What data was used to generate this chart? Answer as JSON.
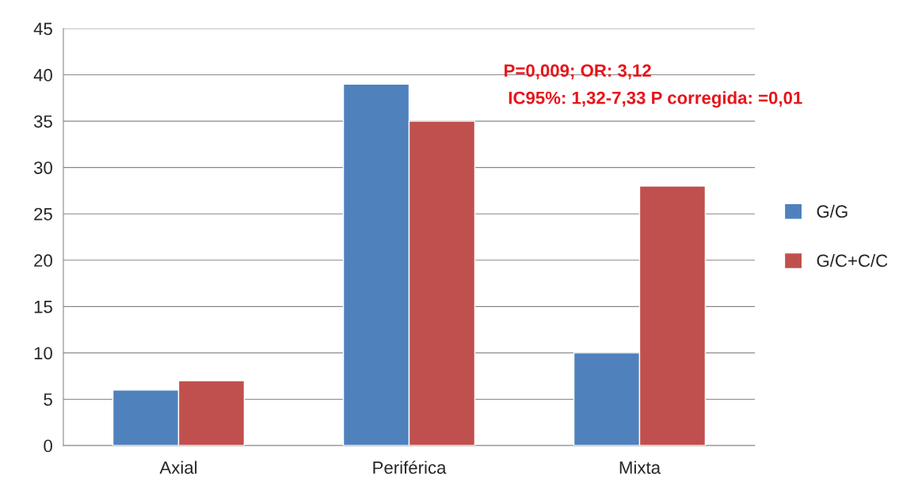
{
  "chart_data": {
    "type": "bar",
    "categories": [
      "Axial",
      "Periférica",
      "Mixta"
    ],
    "series": [
      {
        "name": "G/G",
        "color": "#4f81bd",
        "values": [
          6,
          39,
          10
        ]
      },
      {
        "name": "G/C+C/C",
        "color": "#c0504d",
        "values": [
          7,
          35,
          28
        ]
      }
    ],
    "ylim": [
      0,
      45
    ],
    "yticks": [
      0,
      5,
      10,
      15,
      20,
      25,
      30,
      35,
      40,
      45
    ],
    "grid": "y",
    "legend": "right",
    "annotations": [
      "P=0,009; OR: 3,12",
      "IC95%: 1,32-7,33 P corregida: =0,01"
    ]
  }
}
